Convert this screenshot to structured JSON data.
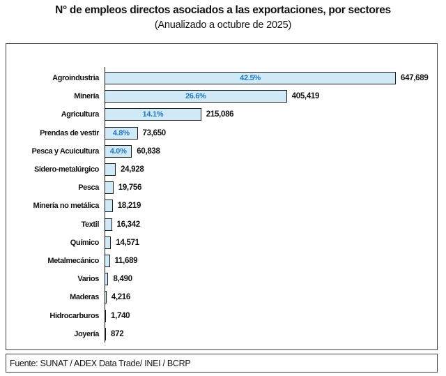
{
  "header": {
    "title": "N° de empleos directos asociados a las exportaciones, por sectores",
    "subtitle": "(Anualizado a octubre de 2025)"
  },
  "footer": {
    "source": "Fuente: SUNAT / ADEX Data Trade/ INEI / BCRP"
  },
  "colors": {
    "bar_fill": "#d0e9f7",
    "bar_border": "#1b1b1b",
    "pct_text": "#2377be",
    "value_text": "#111111",
    "box_border": "#3c3c3c"
  },
  "chart_data": {
    "type": "bar",
    "orientation": "horizontal",
    "title": "N° de empleos directos asociados a las exportaciones, por sectores",
    "subtitle": "(Anualizado a octubre de 2025)",
    "source": "Fuente: SUNAT / ADEX Data Trade/ INEI / BCRP",
    "categories": [
      "Agroindustria",
      "Minería",
      "Agricultura",
      "Prendas de vestir",
      "Pesca y Acuicultura",
      "Sidero-metalúrgico",
      "Pesca",
      "Minería no metálica",
      "Textil",
      "Químico",
      "Metalmecánico",
      "Varios",
      "Maderas",
      "Hidrocarburos",
      "Joyería"
    ],
    "values": [
      647689,
      405419,
      215086,
      73650,
      60838,
      24928,
      19756,
      18219,
      16342,
      14571,
      11689,
      8490,
      4216,
      1740,
      872
    ],
    "value_labels": [
      "647,689",
      "405,419",
      "215,086",
      "73,650",
      "60,838",
      "24,928",
      "19,756",
      "18,219",
      "16,342",
      "14,571",
      "11,689",
      "8,490",
      "4,216",
      "1,740",
      "872"
    ],
    "pct_labels": [
      "42.5%",
      "26.6%",
      "14.1%",
      "4.8%",
      "4.0%",
      "",
      "",
      "",
      "",
      "",
      "",
      "",
      "",
      "",
      ""
    ],
    "xlim": [
      0,
      700000
    ],
    "grid": false,
    "legend": false
  }
}
